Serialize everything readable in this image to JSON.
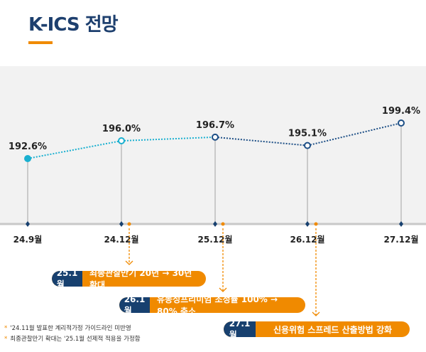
{
  "title": "K-ICS 전망",
  "chart_data": {
    "type": "line",
    "categories": [
      "24.9월",
      "24.12월",
      "25.12월",
      "26.12월",
      "27.12월"
    ],
    "values": [
      192.6,
      196.0,
      196.7,
      195.1,
      199.4
    ],
    "data_labels": [
      "192.6%",
      "196.0%",
      "196.7%",
      "195.1%",
      "199.4%"
    ],
    "grid": false,
    "colors": {
      "actual": "#1ab0d0",
      "forecast": "#1d4f86",
      "accent": "#f08a00",
      "navy": "#17406f"
    }
  },
  "annotations": [
    {
      "date": "25.1월",
      "text": "최종관찰만기 20년 → 30년 확대"
    },
    {
      "date": "26.1월",
      "text": "유동성프리미엄 조정률 100% → 80% 축소"
    },
    {
      "date": "27.1월",
      "text": "신용위험 스프레드 산출방법 강화"
    }
  ],
  "notes": [
    "'24.11월 발표한 계리적가정 가이드라인  미반영",
    "최종관찰만기 확대는 '25.1월 선제적 적용을 가정함"
  ]
}
